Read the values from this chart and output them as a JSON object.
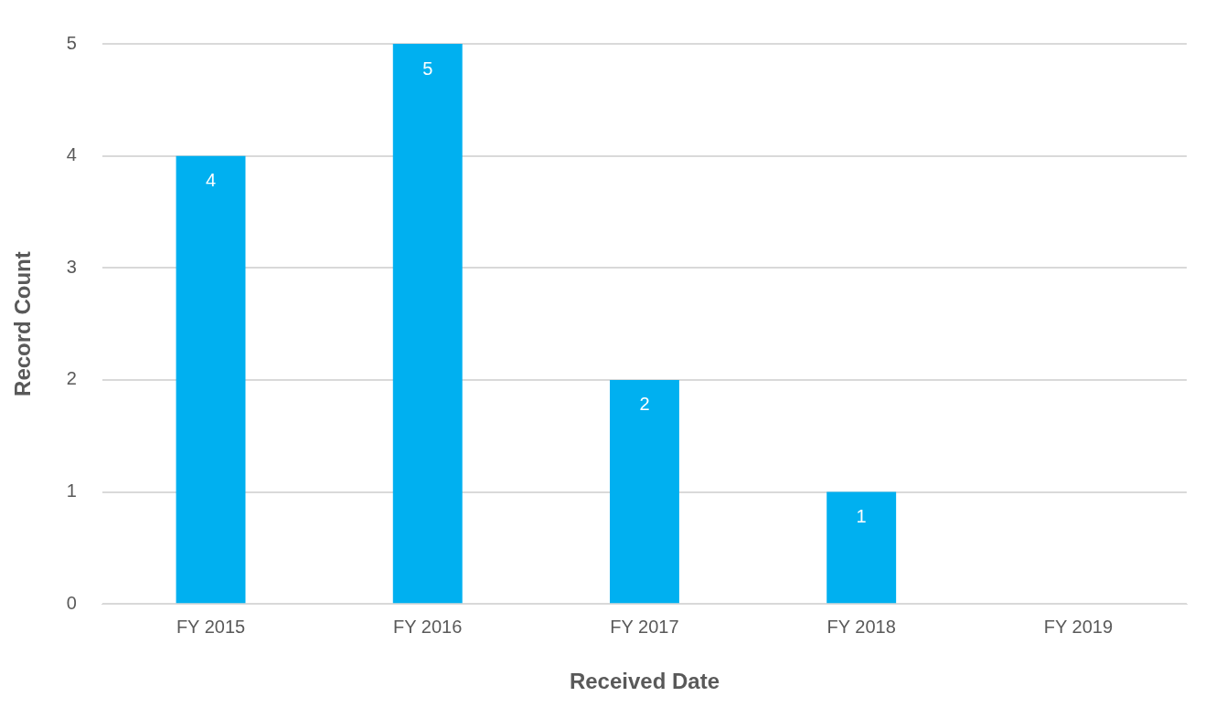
{
  "chart_data": {
    "type": "bar",
    "xlabel": "Received Date",
    "ylabel": "Record Count",
    "categories": [
      "FY 2015",
      "FY 2016",
      "FY 2017",
      "FY 2018",
      "FY 2019"
    ],
    "values": [
      4,
      5,
      2,
      1,
      0
    ],
    "value_labels": [
      "4",
      "5",
      "2",
      "1",
      null
    ],
    "color": "#00b0f0",
    "ylim": [
      0,
      5
    ],
    "yticks": [
      0,
      1,
      2,
      3,
      4,
      5
    ],
    "grid": "y",
    "legend": false
  }
}
